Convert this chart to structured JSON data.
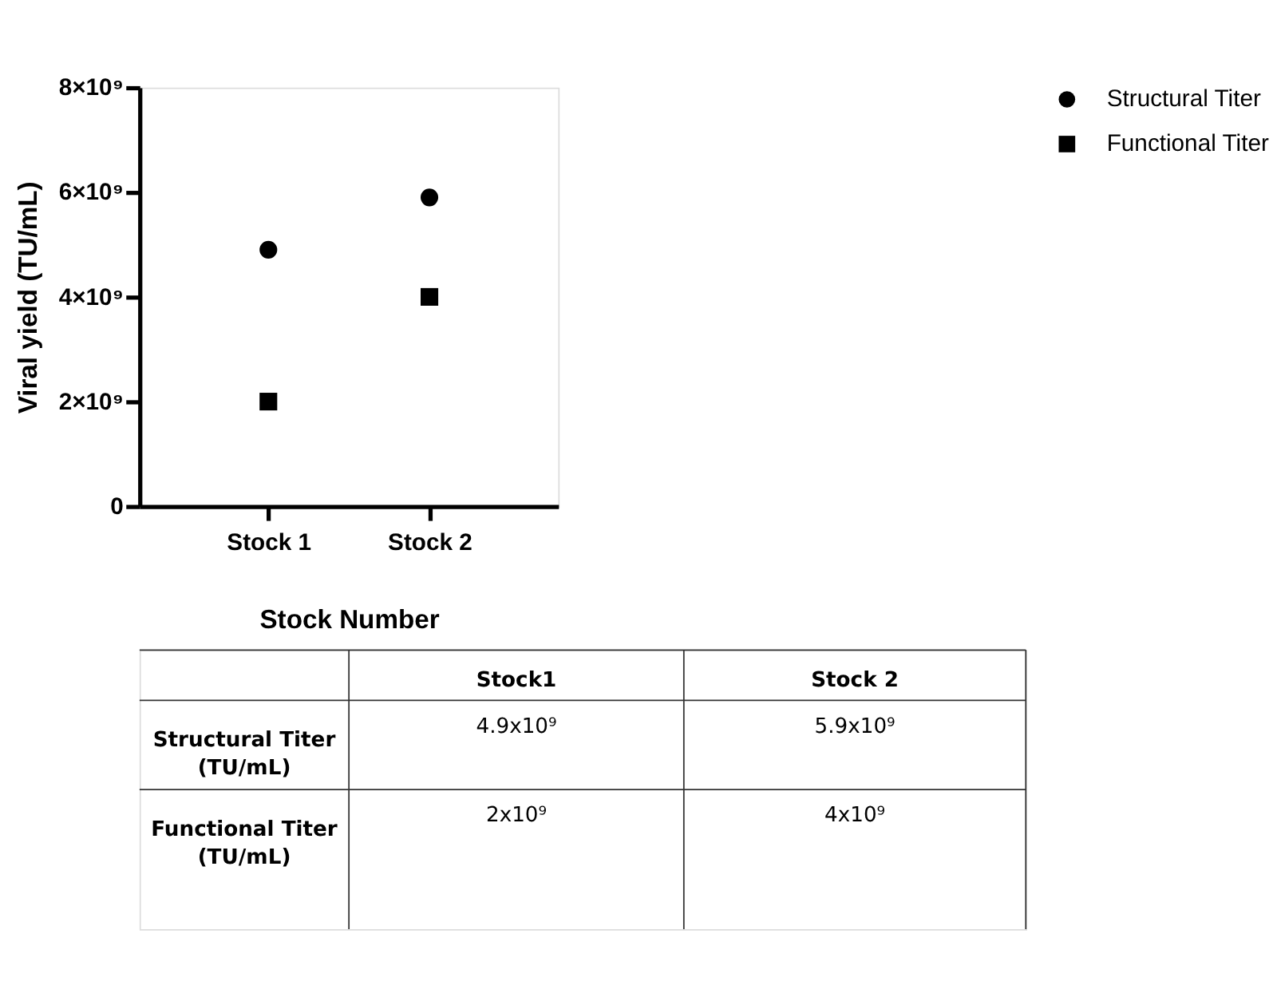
{
  "chart_data": {
    "type": "scatter",
    "xlabel": "Stock Number",
    "ylabel": "Viral yield (TU/mL)",
    "categories": [
      "Stock 1",
      "Stock 2"
    ],
    "series": [
      {
        "name": "Structural Titer",
        "color": "#000000",
        "marker": "circle",
        "values": [
          4900000000,
          5900000000
        ]
      },
      {
        "name": "Functional Titer",
        "color": "#000000",
        "marker": "square",
        "values": [
          2000000000,
          4000000000
        ]
      }
    ],
    "ylim": [
      0,
      8000000000
    ],
    "yticks": [
      0,
      {
        "value": 2000000000,
        "label": "2×10⁹"
      },
      {
        "value": 4000000000,
        "label": "4×10⁹"
      },
      {
        "value": 6000000000,
        "label": "6×10⁹"
      },
      {
        "value": 8000000000,
        "label": "8×10⁹"
      }
    ],
    "grid": false,
    "legend": "top right",
    "annotations": [
      "Stock1",
      "Stock 2",
      "Structural Titer (TU/mL)",
      "4.9x10⁹",
      "5.9x10⁹",
      "Functional Titer (TU/mL)",
      "2x10⁹",
      "4x10⁹"
    ]
  }
}
